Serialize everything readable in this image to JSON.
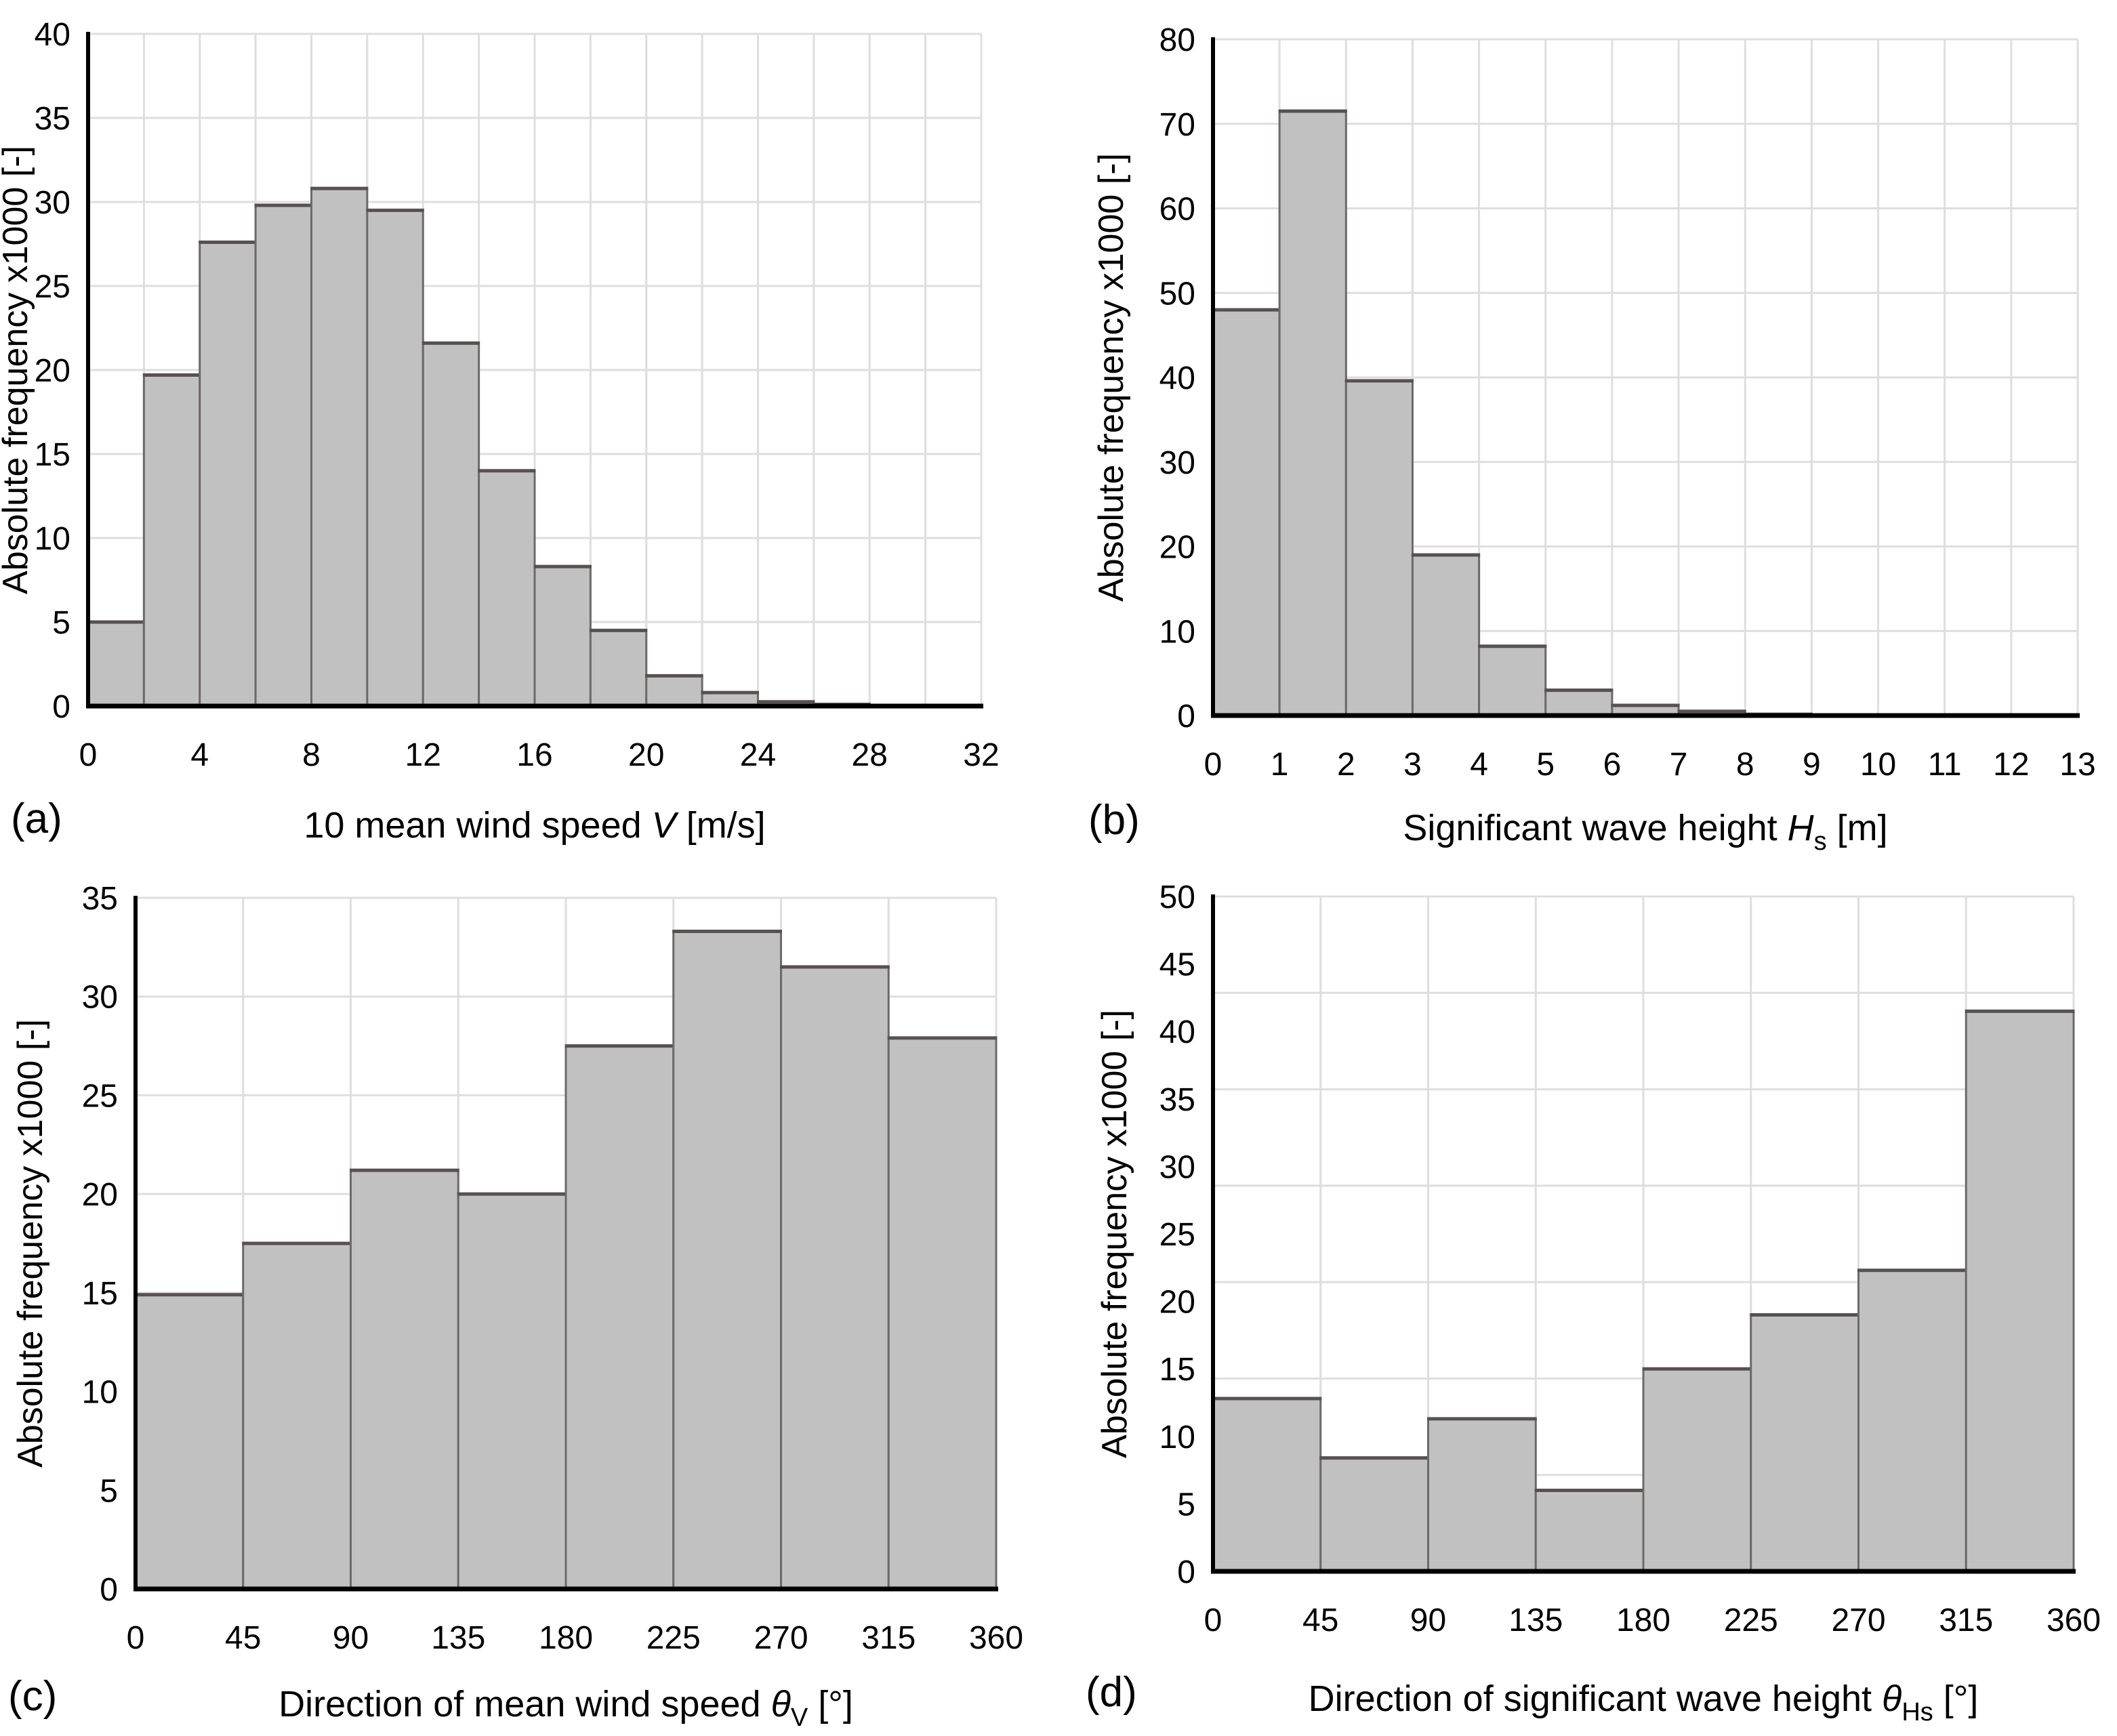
{
  "figure": {
    "type": "histogram-grid-2x2",
    "background": "#ffffff",
    "colors": {
      "bar_fill": "#c2c1c1",
      "bar_border": "#6e6969",
      "bar_top_border": "#575151",
      "grid": "#dedede",
      "axis": "#000000",
      "text": "#000000"
    }
  },
  "chart_data": [
    {
      "id": "a",
      "type": "bar",
      "panel_label": "(a)",
      "xlabel": "10 mean wind speed V [m/s]",
      "xlabel_parts": [
        {
          "text": "10 mean wind speed "
        },
        {
          "text": "V",
          "italic": true
        },
        {
          "text": " [m/s]"
        }
      ],
      "ylabel": "Absolute frequency x1000 [-]",
      "xlim": [
        0,
        32
      ],
      "ylim": [
        0,
        40
      ],
      "bin_edges": [
        0,
        2,
        4,
        6,
        8,
        10,
        12,
        14,
        16,
        18,
        20,
        22,
        24,
        26,
        28,
        30,
        32
      ],
      "values": [
        5.0,
        19.7,
        27.6,
        29.8,
        30.8,
        29.5,
        21.6,
        14.0,
        8.3,
        4.5,
        1.8,
        0.8,
        0.25,
        0.1,
        0,
        0
      ],
      "xticks": [
        0,
        4,
        8,
        12,
        16,
        20,
        24,
        28,
        32
      ],
      "yticks": [
        0,
        5,
        10,
        15,
        20,
        25,
        30,
        35,
        40
      ],
      "x_grid": [
        2,
        4,
        6,
        8,
        10,
        12,
        14,
        16,
        18,
        20,
        22,
        24,
        26,
        28,
        30,
        32
      ],
      "y_grid": [
        5,
        10,
        15,
        20,
        25,
        30,
        35,
        40
      ]
    },
    {
      "id": "b",
      "type": "bar",
      "panel_label": "(b)",
      "xlabel": "Significant wave height Hs [m]",
      "xlabel_parts": [
        {
          "text": "Significant wave height "
        },
        {
          "text": "H",
          "italic": true
        },
        {
          "text": "s",
          "sub": true
        },
        {
          "text": " [m]"
        }
      ],
      "ylabel": "Absolute frequency x1000 [-]",
      "xlim": [
        0,
        13
      ],
      "ylim": [
        0,
        80
      ],
      "bin_edges": [
        0,
        1,
        2,
        3,
        4,
        5,
        6,
        7,
        8,
        9,
        10,
        11,
        12,
        13
      ],
      "values": [
        48.0,
        71.5,
        39.6,
        19.0,
        8.2,
        3.0,
        1.2,
        0.5,
        0.15,
        0,
        0,
        0,
        0
      ],
      "xticks": [
        0,
        1,
        2,
        3,
        4,
        5,
        6,
        7,
        8,
        9,
        10,
        11,
        12,
        13
      ],
      "yticks": [
        0,
        10,
        20,
        30,
        40,
        50,
        60,
        70,
        80
      ],
      "x_grid": [
        1,
        2,
        3,
        4,
        5,
        6,
        7,
        8,
        9,
        10,
        11,
        12,
        13
      ],
      "y_grid": [
        10,
        20,
        30,
        40,
        50,
        60,
        70,
        80
      ]
    },
    {
      "id": "c",
      "type": "bar",
      "panel_label": "(c)",
      "xlabel": "Direction of mean wind speed θV [°]",
      "xlabel_parts": [
        {
          "text": "Direction of mean wind speed  "
        },
        {
          "text": "θ",
          "italic": true
        },
        {
          "text": "V",
          "sub": true
        },
        {
          "text": " [°]"
        }
      ],
      "ylabel": "Absolute frequency x1000 [-]",
      "xlim": [
        0,
        360
      ],
      "ylim": [
        0,
        35
      ],
      "bin_edges": [
        0,
        45,
        90,
        135,
        180,
        225,
        270,
        315,
        360
      ],
      "values": [
        14.9,
        17.5,
        21.2,
        20.0,
        27.5,
        33.3,
        31.5,
        27.9
      ],
      "xticks": [
        0,
        45,
        90,
        135,
        180,
        225,
        270,
        315,
        360
      ],
      "yticks": [
        0,
        5,
        10,
        15,
        20,
        25,
        30,
        35
      ],
      "x_grid": [
        45,
        90,
        135,
        180,
        225,
        270,
        315,
        360
      ],
      "y_grid": [
        5,
        10,
        15,
        20,
        25,
        30,
        35
      ]
    },
    {
      "id": "d",
      "type": "bar",
      "panel_label": "(d)",
      "xlabel": "Direction of significant wave height θHs [°]",
      "xlabel_parts": [
        {
          "text": "Direction of significant wave height "
        },
        {
          "text": "θ",
          "italic": true
        },
        {
          "text": "Hs",
          "sub": true
        },
        {
          "text": " [°]"
        }
      ],
      "ylabel": "Absolute frequency x1000 [-]",
      "xlim": [
        0,
        360
      ],
      "ylim": [
        0,
        50
      ],
      "bin_edges": [
        0,
        45,
        90,
        135,
        180,
        225,
        270,
        315,
        360
      ],
      "values": [
        12.8,
        8.4,
        11.3,
        6.0,
        15.0,
        19.0,
        22.3,
        41.5
      ],
      "xticks": [
        0,
        45,
        90,
        135,
        180,
        225,
        270,
        315,
        360
      ],
      "yticks": [
        0,
        5,
        10,
        15,
        20,
        25,
        30,
        35,
        40,
        45,
        50
      ],
      "x_grid": [
        45,
        90,
        135,
        180,
        225,
        270,
        315,
        360
      ],
      "y_grid": [
        7.14,
        14.29,
        21.43,
        28.57,
        35.71,
        42.86,
        50
      ]
    }
  ]
}
